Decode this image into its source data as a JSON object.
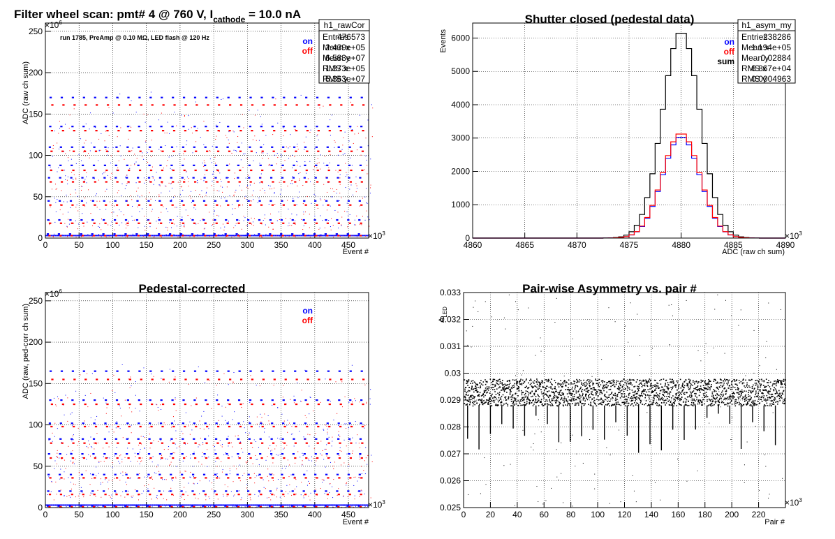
{
  "colors": {
    "on": "#0000ff",
    "off": "#ff0000",
    "sum": "#000000",
    "grid": "#000000"
  },
  "panels": {
    "raw": {
      "title": "Filter wheel scan: pmt#   4 @   760 V, I",
      "title_sub": "cathode",
      "title_tail": " = 10.0 nA",
      "subtitle": "run 1785, PreAmp @ 0.10 MΩ, LED flash @  120 Hz",
      "ylabel": "ADC (raw ch sum)",
      "xlabel": "Event #",
      "xexp": "×10",
      "xexp_sup": "3",
      "yexp": "×10",
      "yexp_sup": "6",
      "stats_title": "h1_raw",
      "stats": [
        {
          "label": "Entries",
          "value": "476573"
        },
        {
          "label": "Mean x",
          "value": "2.383e+05"
        },
        {
          "label": "Mean y",
          "value": "6.436e+07"
        },
        {
          "label": "RMS x",
          "value": "1.376e+05"
        },
        {
          "label": "RMS y",
          "value": "5.456e+07"
        }
      ],
      "legend": [
        "on",
        "off"
      ]
    },
    "ped": {
      "title": "Shutter closed (pedestal data)",
      "ylabel": "Events",
      "xlabel": "ADC (raw ch sum)",
      "xexp": "×10",
      "xexp_sup": "3",
      "stats_title": "h1_ped",
      "stats": [
        {
          "label": "Entries",
          "value": "92002"
        },
        {
          "label": "Mean",
          "value": "4.88e+06"
        },
        {
          "label": "RMS",
          "value": "1798"
        }
      ],
      "legend": [
        "on",
        "off",
        "sum"
      ]
    },
    "cor": {
      "title": "Pedestal-corrected",
      "ylabel": "ADC (raw, ped-corr ch sum)",
      "xlabel": "Event #",
      "xexp": "×10",
      "xexp_sup": "3",
      "yexp": "×10",
      "yexp_sup": "6",
      "stats_title": "h1_rawCor",
      "stats": [
        {
          "label": "Entries",
          "value": "476573"
        },
        {
          "label": "Mean x",
          "value": "2.439e+05"
        },
        {
          "label": "Mean y",
          "value": "6.583e+07"
        },
        {
          "label": "RMS x",
          "value": "1.373e+05"
        },
        {
          "label": "RMS y",
          "value": "5.363e+07"
        }
      ],
      "legend": [
        "on",
        "off"
      ]
    },
    "asym": {
      "title": "Pair-wise Asymmetry vs. pair #",
      "ylabel": "A",
      "ylabel_sub": "LED",
      "xlabel": "Pair #",
      "xexp": "×10",
      "xexp_sup": "3",
      "stats_title": "h1_asym_my",
      "stats": [
        {
          "label": "Entries",
          "value": "238286"
        },
        {
          "label": "Mean x",
          "value": "1.194e+05"
        },
        {
          "label": "Mean y",
          "value": "0.02884"
        },
        {
          "label": "RMS x",
          "value": "6.867e+04"
        },
        {
          "label": "RMS y",
          "value": "0.0004963"
        }
      ]
    }
  },
  "chart_data": [
    {
      "id": "raw",
      "type": "scatter",
      "title": "Filter wheel scan: pmt#   4 @   760 V, I cathode = 10.0 nA",
      "xlabel": "Event #",
      "ylabel": "ADC (raw ch sum)",
      "xunit": "×10^3",
      "yunit": "×10^6",
      "xlim": [
        0,
        480
      ],
      "ylim": [
        0,
        260
      ],
      "xticks": [
        0,
        50,
        100,
        150,
        200,
        250,
        300,
        350,
        400,
        450
      ],
      "yticks": [
        0,
        50,
        100,
        150,
        200,
        250
      ],
      "grid": true,
      "legend_placement": "top-right",
      "series": [
        {
          "name": "on",
          "levels": [
            5,
            22,
            45,
            73,
            88,
            110,
            135,
            170
          ]
        },
        {
          "name": "off",
          "levels": [
            3,
            18,
            40,
            68,
            82,
            105,
            130,
            161
          ]
        }
      ],
      "step_period": 16.5
    },
    {
      "id": "ped",
      "type": "line",
      "title": "Shutter closed (pedestal data)",
      "xlabel": "ADC (raw ch sum)",
      "ylabel": "Events",
      "xunit": "×10^3",
      "xlim": [
        4860,
        4890
      ],
      "ylim": [
        0,
        6450
      ],
      "xticks": [
        4860,
        4865,
        4870,
        4875,
        4880,
        4885,
        4890
      ],
      "yticks": [
        0,
        1000,
        2000,
        3000,
        4000,
        5000,
        6000
      ],
      "grid": true,
      "legend_placement": "top-right",
      "bin_width": 0.5,
      "series": [
        {
          "name": "sum",
          "peak": 6200,
          "mean": 4880,
          "sigma": 1.8
        },
        {
          "name": "on",
          "peak": 3050,
          "mean": 4880,
          "sigma": 1.8
        },
        {
          "name": "off",
          "peak": 3150,
          "mean": 4880,
          "sigma": 1.8
        }
      ]
    },
    {
      "id": "cor",
      "type": "scatter",
      "title": "Pedestal-corrected",
      "xlabel": "Event #",
      "ylabel": "ADC (raw, ped-corr ch sum)",
      "xunit": "×10^3",
      "yunit": "×10^6",
      "xlim": [
        0,
        480
      ],
      "ylim": [
        0,
        260
      ],
      "xticks": [
        0,
        50,
        100,
        150,
        200,
        250,
        300,
        350,
        400,
        450
      ],
      "yticks": [
        0,
        50,
        100,
        150,
        200,
        250
      ],
      "grid": true,
      "legend_placement": "top-right",
      "series": [
        {
          "name": "on",
          "levels": [
            2,
            20,
            40,
            65,
            83,
            102,
            130,
            165
          ]
        },
        {
          "name": "off",
          "levels": [
            1,
            16,
            36,
            60,
            78,
            98,
            125,
            155
          ]
        }
      ],
      "step_period": 16.5
    },
    {
      "id": "asym",
      "type": "scatter",
      "title": "Pair-wise Asymmetry vs. pair #",
      "xlabel": "Pair #",
      "ylabel": "A LED",
      "xunit": "×10^3",
      "xlim": [
        0,
        240
      ],
      "ylim": [
        0.025,
        0.033
      ],
      "xticks": [
        0,
        20,
        40,
        60,
        80,
        100,
        120,
        140,
        160,
        180,
        200,
        220
      ],
      "yticks": [
        0.025,
        0.026,
        0.027,
        0.028,
        0.029,
        0.03,
        0.031,
        0.032,
        0.033
      ],
      "grid": true,
      "series": [
        {
          "name": "",
          "center": 0.0293,
          "band": 0.0005
        }
      ]
    }
  ]
}
